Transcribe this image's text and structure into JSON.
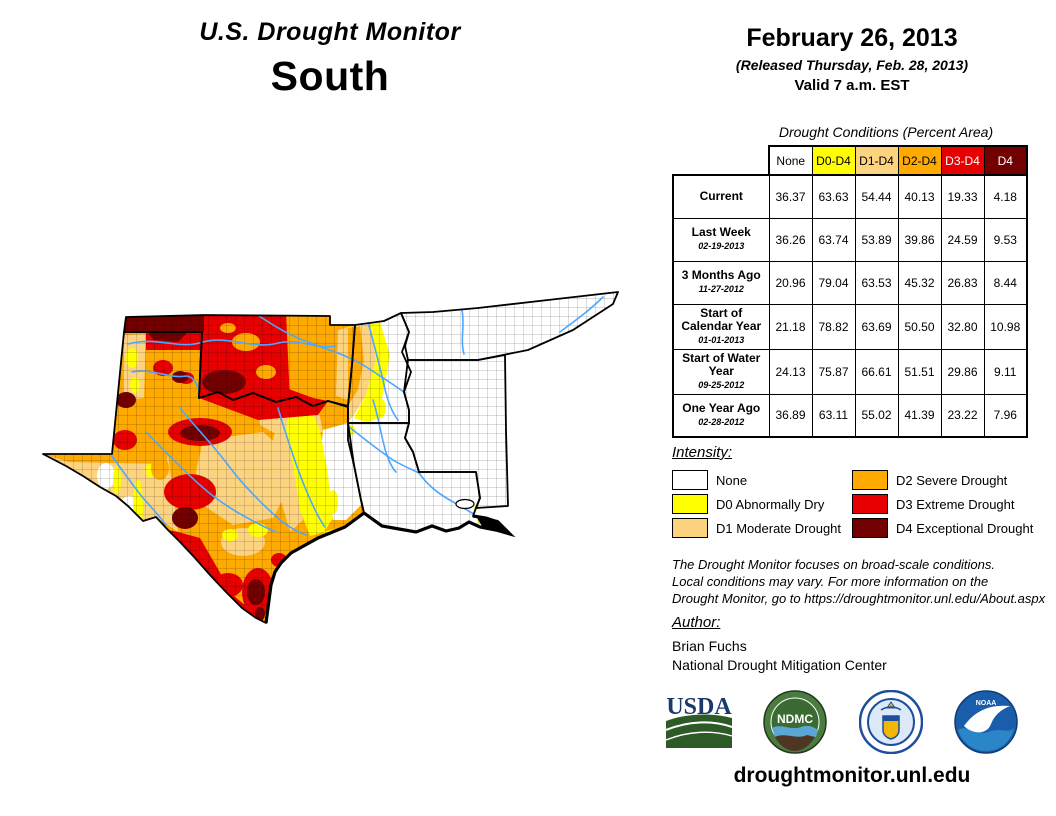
{
  "header": {
    "title": "U.S. Drought Monitor",
    "region": "South"
  },
  "date_block": {
    "date": "February 26, 2013",
    "released": "(Released Thursday, Feb. 28, 2013)",
    "valid": "Valid 7 a.m. EST"
  },
  "table": {
    "title": "Drought Conditions (Percent Area)",
    "columns": [
      {
        "label": "None",
        "bg": "#FFFFFF",
        "fg": "#000000"
      },
      {
        "label": "D0-D4",
        "bg": "#FFFF00",
        "fg": "#000000"
      },
      {
        "label": "D1-D4",
        "bg": "#FCD37F",
        "fg": "#000000"
      },
      {
        "label": "D2-D4",
        "bg": "#FFAA00",
        "fg": "#000000"
      },
      {
        "label": "D3-D4",
        "bg": "#E60000",
        "fg": "#FFFFFF"
      },
      {
        "label": "D4",
        "bg": "#730000",
        "fg": "#FFFFFF"
      }
    ],
    "rows": [
      {
        "label": "Current",
        "sublabel": "",
        "values": [
          "36.37",
          "63.63",
          "54.44",
          "40.13",
          "19.33",
          "4.18"
        ]
      },
      {
        "label": "Last Week",
        "sublabel": "02-19-2013",
        "values": [
          "36.26",
          "63.74",
          "53.89",
          "39.86",
          "24.59",
          "9.53"
        ]
      },
      {
        "label": "3 Months Ago",
        "sublabel": "11-27-2012",
        "values": [
          "20.96",
          "79.04",
          "63.53",
          "45.32",
          "26.83",
          "8.44"
        ]
      },
      {
        "label": "Start of Calendar Year",
        "sublabel": "01-01-2013",
        "values": [
          "21.18",
          "78.82",
          "63.69",
          "50.50",
          "32.80",
          "10.98"
        ]
      },
      {
        "label": "Start of Water Year",
        "sublabel": "09-25-2012",
        "values": [
          "24.13",
          "75.87",
          "66.61",
          "51.51",
          "29.86",
          "9.11"
        ]
      },
      {
        "label": "One Year Ago",
        "sublabel": "02-28-2012",
        "values": [
          "36.89",
          "63.11",
          "55.02",
          "41.39",
          "23.22",
          "7.96"
        ]
      }
    ]
  },
  "legend": {
    "title": "Intensity:",
    "items": [
      {
        "code": "none",
        "label": "None",
        "color": "#FFFFFF"
      },
      {
        "code": "d0",
        "label": "D0 Abnormally Dry",
        "color": "#FFFF00"
      },
      {
        "code": "d1",
        "label": "D1 Moderate Drought",
        "color": "#FCD37F"
      },
      {
        "code": "d2",
        "label": "D2 Severe Drought",
        "color": "#FFAA00"
      },
      {
        "code": "d3",
        "label": "D3 Extreme Drought",
        "color": "#E60000"
      },
      {
        "code": "d4",
        "label": "D4 Exceptional Drought",
        "color": "#730000"
      }
    ]
  },
  "disclaimer": {
    "lines": [
      "The Drought Monitor focuses on broad-scale conditions.",
      "Local conditions may vary. For more information on the",
      "Drought Monitor, go to https://droughtmonitor.unl.edu/About.aspx"
    ]
  },
  "author": {
    "label": "Author:",
    "name": "Brian Fuchs",
    "org": "National Drought Mitigation Center"
  },
  "logos": [
    {
      "name": "usda-logo",
      "text": "USDA"
    },
    {
      "name": "ndmc-logo",
      "text": "NDMC"
    },
    {
      "name": "commerce-seal-logo",
      "text": ""
    },
    {
      "name": "noaa-logo",
      "text": "NOAA"
    }
  ],
  "footer": {
    "url": "droughtmonitor.unl.edu"
  },
  "map": {
    "drought_palette": {
      "none": "#FFFFFF",
      "d0": "#FFFF00",
      "d1": "#FCD37F",
      "d2": "#FFAA00",
      "d3": "#E60000",
      "d4": "#730000"
    },
    "river_color": "#4DA6FF"
  }
}
